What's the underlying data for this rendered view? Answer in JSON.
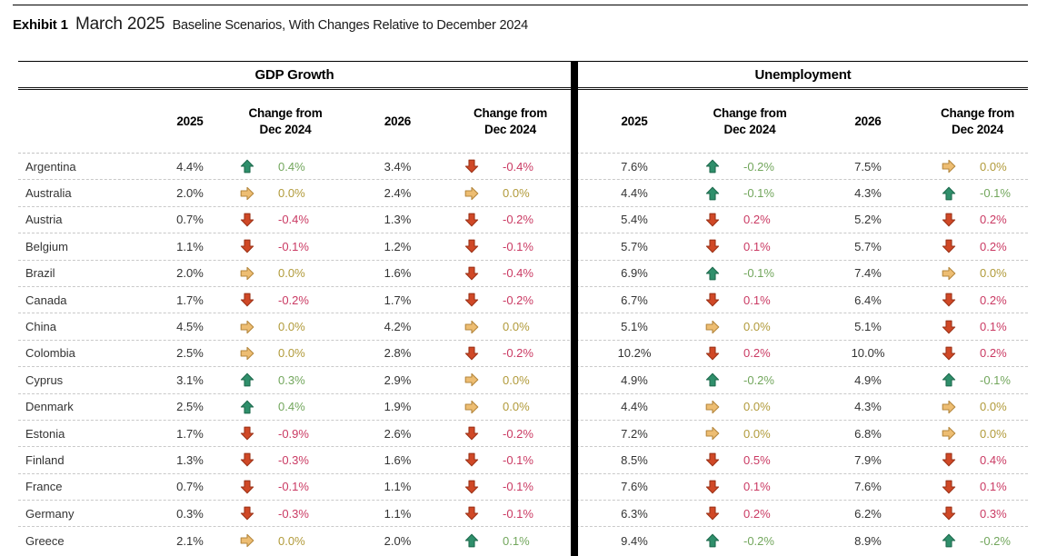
{
  "title": {
    "exhibit": "Exhibit 1",
    "period": "March 2025",
    "subtitle": "Baseline Scenarios, With Changes Relative to December 2024"
  },
  "table": {
    "sections": [
      {
        "label": "GDP Growth"
      },
      {
        "label": "Unemployment"
      }
    ],
    "columns": {
      "y2025": "2025",
      "y2026": "2026",
      "change_line1": "Change from",
      "change_line2": "Dec 2024"
    },
    "rows": [
      {
        "country": "Argentina",
        "gdp": {
          "v2025": "4.4%",
          "c2025": {
            "dir": "up",
            "val": "0.4%"
          },
          "v2026": "3.4%",
          "c2026": {
            "dir": "down",
            "val": "-0.4%"
          }
        },
        "unemp": {
          "v2025": "7.6%",
          "c2025": {
            "dir": "up",
            "val": "-0.2%"
          },
          "v2026": "7.5%",
          "c2026": {
            "dir": "flat",
            "val": "0.0%"
          }
        }
      },
      {
        "country": "Australia",
        "gdp": {
          "v2025": "2.0%",
          "c2025": {
            "dir": "flat",
            "val": "0.0%"
          },
          "v2026": "2.4%",
          "c2026": {
            "dir": "flat",
            "val": "0.0%"
          }
        },
        "unemp": {
          "v2025": "4.4%",
          "c2025": {
            "dir": "up",
            "val": "-0.1%"
          },
          "v2026": "4.3%",
          "c2026": {
            "dir": "up",
            "val": "-0.1%"
          }
        }
      },
      {
        "country": "Austria",
        "gdp": {
          "v2025": "0.7%",
          "c2025": {
            "dir": "down",
            "val": "-0.4%"
          },
          "v2026": "1.3%",
          "c2026": {
            "dir": "down",
            "val": "-0.2%"
          }
        },
        "unemp": {
          "v2025": "5.4%",
          "c2025": {
            "dir": "down",
            "val": "0.2%"
          },
          "v2026": "5.2%",
          "c2026": {
            "dir": "down",
            "val": "0.2%"
          }
        }
      },
      {
        "country": "Belgium",
        "gdp": {
          "v2025": "1.1%",
          "c2025": {
            "dir": "down",
            "val": "-0.1%"
          },
          "v2026": "1.2%",
          "c2026": {
            "dir": "down",
            "val": "-0.1%"
          }
        },
        "unemp": {
          "v2025": "5.7%",
          "c2025": {
            "dir": "down",
            "val": "0.1%"
          },
          "v2026": "5.7%",
          "c2026": {
            "dir": "down",
            "val": "0.2%"
          }
        }
      },
      {
        "country": "Brazil",
        "gdp": {
          "v2025": "2.0%",
          "c2025": {
            "dir": "flat",
            "val": "0.0%"
          },
          "v2026": "1.6%",
          "c2026": {
            "dir": "down",
            "val": "-0.4%"
          }
        },
        "unemp": {
          "v2025": "6.9%",
          "c2025": {
            "dir": "up",
            "val": "-0.1%"
          },
          "v2026": "7.4%",
          "c2026": {
            "dir": "flat",
            "val": "0.0%"
          }
        }
      },
      {
        "country": "Canada",
        "gdp": {
          "v2025": "1.7%",
          "c2025": {
            "dir": "down",
            "val": "-0.2%"
          },
          "v2026": "1.7%",
          "c2026": {
            "dir": "down",
            "val": "-0.2%"
          }
        },
        "unemp": {
          "v2025": "6.7%",
          "c2025": {
            "dir": "down",
            "val": "0.1%"
          },
          "v2026": "6.4%",
          "c2026": {
            "dir": "down",
            "val": "0.2%"
          }
        }
      },
      {
        "country": "China",
        "gdp": {
          "v2025": "4.5%",
          "c2025": {
            "dir": "flat",
            "val": "0.0%"
          },
          "v2026": "4.2%",
          "c2026": {
            "dir": "flat",
            "val": "0.0%"
          }
        },
        "unemp": {
          "v2025": "5.1%",
          "c2025": {
            "dir": "flat",
            "val": "0.0%"
          },
          "v2026": "5.1%",
          "c2026": {
            "dir": "down",
            "val": "0.1%"
          }
        }
      },
      {
        "country": "Colombia",
        "gdp": {
          "v2025": "2.5%",
          "c2025": {
            "dir": "flat",
            "val": "0.0%"
          },
          "v2026": "2.8%",
          "c2026": {
            "dir": "down",
            "val": "-0.2%"
          }
        },
        "unemp": {
          "v2025": "10.2%",
          "c2025": {
            "dir": "down",
            "val": "0.2%"
          },
          "v2026": "10.0%",
          "c2026": {
            "dir": "down",
            "val": "0.2%"
          }
        }
      },
      {
        "country": "Cyprus",
        "gdp": {
          "v2025": "3.1%",
          "c2025": {
            "dir": "up",
            "val": "0.3%"
          },
          "v2026": "2.9%",
          "c2026": {
            "dir": "flat",
            "val": "0.0%"
          }
        },
        "unemp": {
          "v2025": "4.9%",
          "c2025": {
            "dir": "up",
            "val": "-0.2%"
          },
          "v2026": "4.9%",
          "c2026": {
            "dir": "up",
            "val": "-0.1%"
          }
        }
      },
      {
        "country": "Denmark",
        "gdp": {
          "v2025": "2.5%",
          "c2025": {
            "dir": "up",
            "val": "0.4%"
          },
          "v2026": "1.9%",
          "c2026": {
            "dir": "flat",
            "val": "0.0%"
          }
        },
        "unemp": {
          "v2025": "4.4%",
          "c2025": {
            "dir": "flat",
            "val": "0.0%"
          },
          "v2026": "4.3%",
          "c2026": {
            "dir": "flat",
            "val": "0.0%"
          }
        }
      },
      {
        "country": "Estonia",
        "gdp": {
          "v2025": "1.7%",
          "c2025": {
            "dir": "down",
            "val": "-0.9%"
          },
          "v2026": "2.6%",
          "c2026": {
            "dir": "down",
            "val": "-0.2%"
          }
        },
        "unemp": {
          "v2025": "7.2%",
          "c2025": {
            "dir": "flat",
            "val": "0.0%"
          },
          "v2026": "6.8%",
          "c2026": {
            "dir": "flat",
            "val": "0.0%"
          }
        }
      },
      {
        "country": "Finland",
        "gdp": {
          "v2025": "1.3%",
          "c2025": {
            "dir": "down",
            "val": "-0.3%"
          },
          "v2026": "1.6%",
          "c2026": {
            "dir": "down",
            "val": "-0.1%"
          }
        },
        "unemp": {
          "v2025": "8.5%",
          "c2025": {
            "dir": "down",
            "val": "0.5%"
          },
          "v2026": "7.9%",
          "c2026": {
            "dir": "down",
            "val": "0.4%"
          }
        }
      },
      {
        "country": "France",
        "gdp": {
          "v2025": "0.7%",
          "c2025": {
            "dir": "down",
            "val": "-0.1%"
          },
          "v2026": "1.1%",
          "c2026": {
            "dir": "down",
            "val": "-0.1%"
          }
        },
        "unemp": {
          "v2025": "7.6%",
          "c2025": {
            "dir": "down",
            "val": "0.1%"
          },
          "v2026": "7.6%",
          "c2026": {
            "dir": "down",
            "val": "0.1%"
          }
        }
      },
      {
        "country": "Germany",
        "gdp": {
          "v2025": "0.3%",
          "c2025": {
            "dir": "down",
            "val": "-0.3%"
          },
          "v2026": "1.1%",
          "c2026": {
            "dir": "down",
            "val": "-0.1%"
          }
        },
        "unemp": {
          "v2025": "6.3%",
          "c2025": {
            "dir": "down",
            "val": "0.2%"
          },
          "v2026": "6.2%",
          "c2026": {
            "dir": "down",
            "val": "0.3%"
          }
        }
      },
      {
        "country": "Greece",
        "gdp": {
          "v2025": "2.1%",
          "c2025": {
            "dir": "flat",
            "val": "0.0%"
          },
          "v2026": "2.0%",
          "c2026": {
            "dir": "up",
            "val": "0.1%"
          }
        },
        "unemp": {
          "v2025": "9.4%",
          "c2025": {
            "dir": "up",
            "val": "-0.2%"
          },
          "v2026": "8.9%",
          "c2026": {
            "dir": "up",
            "val": "-0.2%"
          }
        }
      }
    ]
  },
  "colors": {
    "text_good": "#72a65c",
    "text_neutral": "#b19a3a",
    "text_bad": "#ca3a63",
    "arrow_up_fill": "#2f8f6b",
    "arrow_up_stroke": "#1f6b4e",
    "arrow_flat_fill": "#edbd72",
    "arrow_flat_stroke": "#b5873d",
    "arrow_down_fill": "#d04826",
    "arrow_down_stroke": "#9c3318"
  },
  "icons": {
    "up": "up-arrow-icon",
    "flat": "flat-arrow-icon",
    "down": "down-arrow-icon"
  }
}
